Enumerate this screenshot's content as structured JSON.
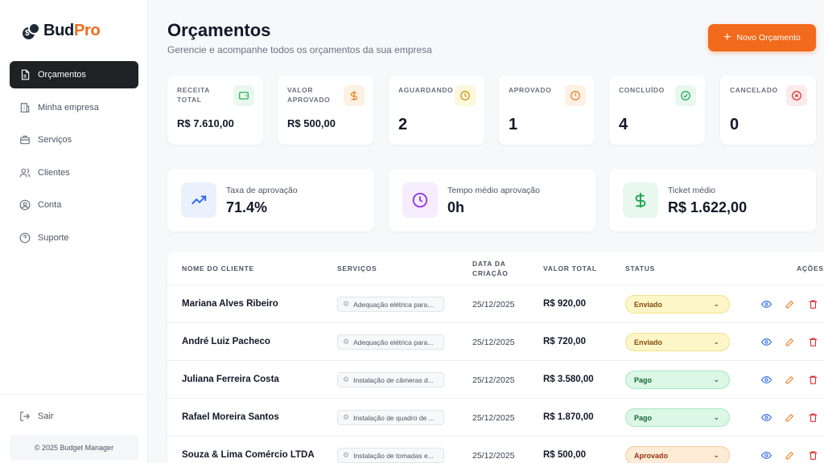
{
  "brand": {
    "part1": "Bud",
    "part2": "Pro"
  },
  "sidebar": {
    "items": [
      {
        "label": "Orçamentos",
        "icon": "document-icon"
      },
      {
        "label": "Minha empresa",
        "icon": "building-icon"
      },
      {
        "label": "Serviços",
        "icon": "briefcase-icon"
      },
      {
        "label": "Clientes",
        "icon": "users-icon"
      },
      {
        "label": "Conta",
        "icon": "user-circle-icon"
      },
      {
        "label": "Suporte",
        "icon": "help-circle-icon"
      }
    ],
    "logout_label": "Sair",
    "copyright": "© 2025 Budget Manager"
  },
  "header": {
    "title": "Orçamentos",
    "subtitle": "Gerencie e acompanhe todos os orçamentos da sua empresa",
    "new_button_label": "Novo Orçamento"
  },
  "stats": [
    {
      "label": "RECEITA TOTAL",
      "value": "R$ 7.610,00",
      "icon": "wallet-icon",
      "color": "#16a34a",
      "bg": "#e8f8ee"
    },
    {
      "label": "VALOR APROVADO",
      "value": "R$ 500,00",
      "icon": "dollar-icon",
      "color": "#ea7a1a",
      "bg": "#fdf1e4"
    },
    {
      "label": "AGUARDANDO",
      "value": "2",
      "icon": "clock-icon",
      "color": "#ca8a04",
      "bg": "#fdf7dc"
    },
    {
      "label": "APROVADO",
      "value": "1",
      "icon": "alert-circle-icon",
      "color": "#ea7a1a",
      "bg": "#fdf1e4"
    },
    {
      "label": "CONCLUÍDO",
      "value": "4",
      "icon": "check-circle-icon",
      "color": "#16a34a",
      "bg": "#e8f8ee"
    },
    {
      "label": "CANCELADO",
      "value": "0",
      "icon": "x-circle-icon",
      "color": "#dc2626",
      "bg": "#fdeaea"
    }
  ],
  "metrics": [
    {
      "label": "Taxa de aprovação",
      "value": "71.4%",
      "icon": "trending-up-icon",
      "color": "#2563eb",
      "bg": "#eaf1fd"
    },
    {
      "label": "Tempo médio aprovação",
      "value": "0h",
      "icon": "clock-icon",
      "color": "#9333ea",
      "bg": "#f5ecfd"
    },
    {
      "label": "Ticket médio",
      "value": "R$ 1.622,00",
      "icon": "dollar-icon",
      "color": "#16a34a",
      "bg": "#e8f8ee"
    }
  ],
  "table": {
    "columns": [
      "NOME DO CLIENTE",
      "SERVIÇOS",
      "DATA DA CRIAÇÃO",
      "VALOR TOTAL",
      "STATUS",
      "AÇÕES"
    ],
    "rows": [
      {
        "client": "Mariana Alves Ribeiro",
        "service": "Adequação elétrica para...",
        "date": "25/12/2025",
        "total": "R$ 920,00",
        "status": "Enviado",
        "status_bg": "#fdf6c8",
        "status_color": "#854d0e",
        "status_border": "#f2e28a"
      },
      {
        "client": "André Luiz Pacheco",
        "service": "Adequação elétrica para...",
        "date": "25/12/2025",
        "total": "R$ 720,00",
        "status": "Enviado",
        "status_bg": "#fdf6c8",
        "status_color": "#854d0e",
        "status_border": "#f2e28a"
      },
      {
        "client": "Juliana Ferreira Costa",
        "service": "Instalação de câmeras d...",
        "date": "25/12/2025",
        "total": "R$ 3.580,00",
        "status": "Pago",
        "status_bg": "#dcf7e6",
        "status_color": "#166534",
        "status_border": "#a7e8bf"
      },
      {
        "client": "Rafael Moreira Santos",
        "service": "Instalação de quadro de ...",
        "date": "25/12/2025",
        "total": "R$ 1.870,00",
        "status": "Pago",
        "status_bg": "#dcf7e6",
        "status_color": "#166534",
        "status_border": "#a7e8bf"
      },
      {
        "client": "Souza & Lima Comércio LTDA",
        "service": "Instalação de tomadas e...",
        "date": "25/12/2025",
        "total": "R$ 500,00",
        "status": "Aprovado",
        "status_bg": "#fdebd6",
        "status_color": "#9a3412",
        "status_border": "#f6c99a"
      }
    ]
  },
  "actions": {
    "view": "eye-icon",
    "edit": "pencil-icon",
    "delete": "trash-icon"
  }
}
